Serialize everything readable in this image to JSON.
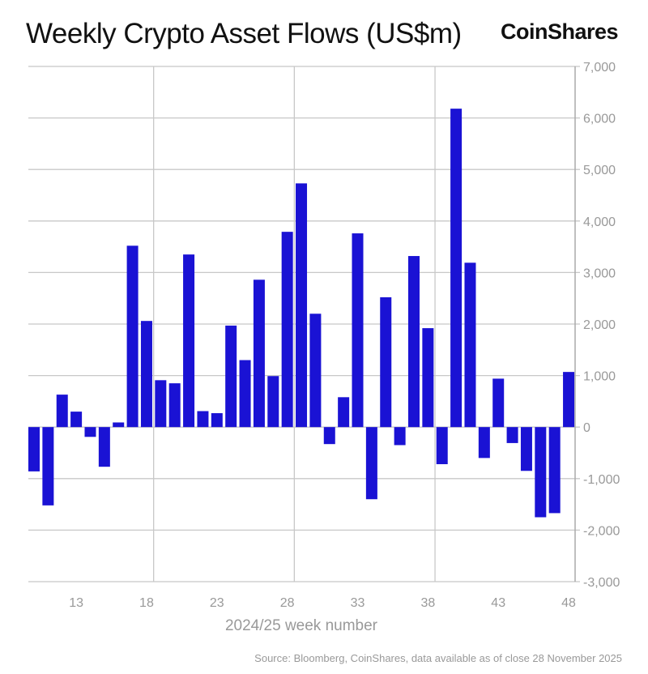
{
  "header": {
    "title": "Weekly Crypto Asset Flows (US$m)",
    "brand": "CoinShares"
  },
  "footer": {
    "source": "Source: Bloomberg, CoinShares, data available as of close 28 November 2025"
  },
  "chart_data": {
    "type": "bar",
    "title": "Weekly Crypto Asset Flows (US$m)",
    "xlabel": "2024/25 week number",
    "ylabel": "",
    "ylim": [
      -3000,
      7000
    ],
    "y_ticks": [
      "7,000",
      "6,000",
      "5,000",
      "4,000",
      "3,000",
      "2,000",
      "1,000",
      "0",
      "-1,000",
      "-2,000",
      "-3,000"
    ],
    "y_tick_values": [
      7000,
      6000,
      5000,
      4000,
      3000,
      2000,
      1000,
      0,
      -1000,
      -2000,
      -3000
    ],
    "x_ticks": [
      "13",
      "18",
      "23",
      "28",
      "33",
      "38",
      "43",
      "48"
    ],
    "grid": true,
    "axis_position": "right",
    "bar_color": "#1a12d4",
    "categories": [
      10,
      11,
      12,
      13,
      14,
      15,
      16,
      17,
      18,
      19,
      20,
      21,
      22,
      23,
      24,
      25,
      26,
      27,
      28,
      29,
      30,
      31,
      32,
      33,
      34,
      35,
      36,
      37,
      38,
      39,
      40,
      41,
      42,
      43,
      44,
      45,
      46,
      47,
      48
    ],
    "values": [
      -860,
      -1520,
      630,
      300,
      -190,
      -770,
      90,
      3520,
      2060,
      910,
      850,
      3350,
      310,
      270,
      1970,
      1300,
      2860,
      990,
      3790,
      4730,
      2200,
      -330,
      580,
      3760,
      -1400,
      2520,
      -350,
      3320,
      1920,
      -720,
      6180,
      3190,
      -600,
      940,
      -310,
      -850,
      -1750,
      -1670,
      1070
    ]
  }
}
